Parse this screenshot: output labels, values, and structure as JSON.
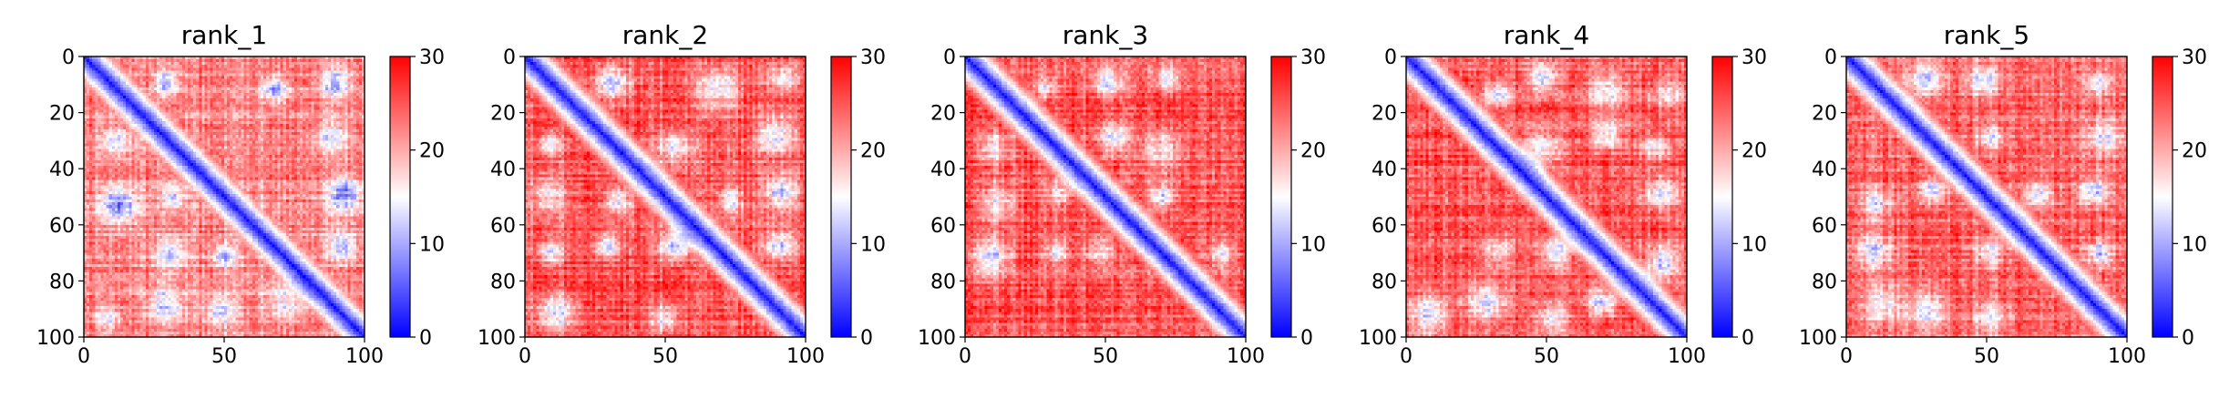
{
  "chart_data": [
    {
      "type": "heatmap",
      "title": "rank_1",
      "colormap": "bwr",
      "clim": [
        0,
        30
      ],
      "xlim": [
        0,
        100
      ],
      "ylim": [
        100,
        0
      ],
      "x_ticks": [
        0,
        50,
        100
      ],
      "y_ticks": [
        0,
        20,
        40,
        60,
        80,
        100
      ],
      "colorbar_ticks": [
        0,
        10,
        20,
        30
      ],
      "diagonal_band_value": 0,
      "off_diagonal_value": 22,
      "seed": 11
    },
    {
      "type": "heatmap",
      "title": "rank_2",
      "colormap": "bwr",
      "clim": [
        0,
        30
      ],
      "xlim": [
        0,
        100
      ],
      "ylim": [
        100,
        0
      ],
      "x_ticks": [
        0,
        50,
        100
      ],
      "y_ticks": [
        0,
        20,
        40,
        60,
        80,
        100
      ],
      "colorbar_ticks": [
        0,
        10,
        20,
        30
      ],
      "diagonal_band_value": 0,
      "off_diagonal_value": 25,
      "seed": 23
    },
    {
      "type": "heatmap",
      "title": "rank_3",
      "colormap": "bwr",
      "clim": [
        0,
        30
      ],
      "xlim": [
        0,
        100
      ],
      "ylim": [
        100,
        0
      ],
      "x_ticks": [
        0,
        50,
        100
      ],
      "y_ticks": [
        0,
        20,
        40,
        60,
        80,
        100
      ],
      "colorbar_ticks": [
        0,
        10,
        20,
        30
      ],
      "diagonal_band_value": 0,
      "off_diagonal_value": 25,
      "seed": 37
    },
    {
      "type": "heatmap",
      "title": "rank_4",
      "colormap": "bwr",
      "clim": [
        0,
        30
      ],
      "xlim": [
        0,
        100
      ],
      "ylim": [
        100,
        0
      ],
      "x_ticks": [
        0,
        50,
        100
      ],
      "y_ticks": [
        0,
        20,
        40,
        60,
        80,
        100
      ],
      "colorbar_ticks": [
        0,
        10,
        20,
        30
      ],
      "diagonal_band_value": 0,
      "off_diagonal_value": 25,
      "seed": 41
    },
    {
      "type": "heatmap",
      "title": "rank_5",
      "colormap": "bwr",
      "clim": [
        0,
        30
      ],
      "xlim": [
        0,
        100
      ],
      "ylim": [
        100,
        0
      ],
      "x_ticks": [
        0,
        50,
        100
      ],
      "y_ticks": [
        0,
        20,
        40,
        60,
        80,
        100
      ],
      "colorbar_ticks": [
        0,
        10,
        20,
        30
      ],
      "diagonal_band_value": 0,
      "off_diagonal_value": 24,
      "seed": 53
    }
  ]
}
